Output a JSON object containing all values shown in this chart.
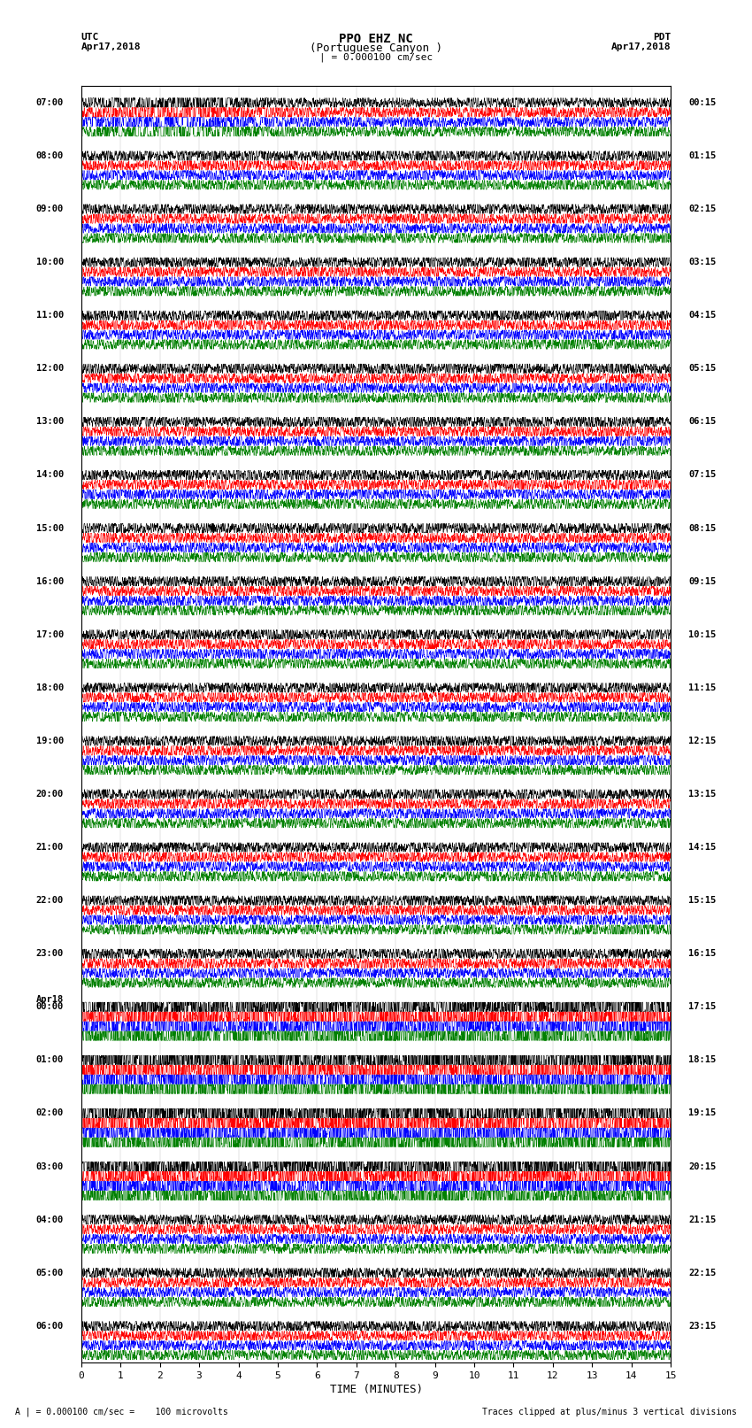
{
  "title_line1": "PPO EHZ NC",
  "title_line2": "(Portuguese Canyon )",
  "title_line3": "| = 0.000100 cm/sec",
  "label_utc": "UTC",
  "label_pdt": "PDT",
  "label_date_left": "Apr17,2018",
  "label_date_right": "Apr17,2018",
  "xlabel": "TIME (MINUTES)",
  "footer_left": "A | = 0.000100 cm/sec =    100 microvolts",
  "footer_right": "Traces clipped at plus/minus 3 vertical divisions",
  "trace_colors": [
    "black",
    "red",
    "blue",
    "green"
  ],
  "bg_color": "#ffffff",
  "xlim": [
    0,
    15
  ],
  "xticks": [
    0,
    1,
    2,
    3,
    4,
    5,
    6,
    7,
    8,
    9,
    10,
    11,
    12,
    13,
    14,
    15
  ],
  "num_hours": 24,
  "traces_per_hour": 4,
  "left_times_utc": [
    "07:00",
    "08:00",
    "09:00",
    "10:00",
    "11:00",
    "12:00",
    "13:00",
    "14:00",
    "15:00",
    "16:00",
    "17:00",
    "18:00",
    "19:00",
    "20:00",
    "21:00",
    "22:00",
    "23:00",
    "00:00",
    "01:00",
    "02:00",
    "03:00",
    "04:00",
    "05:00",
    "06:00"
  ],
  "left_special": [
    0,
    0,
    0,
    0,
    0,
    0,
    0,
    0,
    0,
    0,
    0,
    0,
    0,
    0,
    0,
    0,
    0,
    1,
    0,
    0,
    0,
    0,
    0,
    0
  ],
  "right_times_pdt": [
    "00:15",
    "01:15",
    "02:15",
    "03:15",
    "04:15",
    "05:15",
    "06:15",
    "07:15",
    "08:15",
    "09:15",
    "10:15",
    "11:15",
    "12:15",
    "13:15",
    "14:15",
    "15:15",
    "16:15",
    "17:15",
    "18:15",
    "19:15",
    "20:15",
    "21:15",
    "22:15",
    "23:15"
  ]
}
